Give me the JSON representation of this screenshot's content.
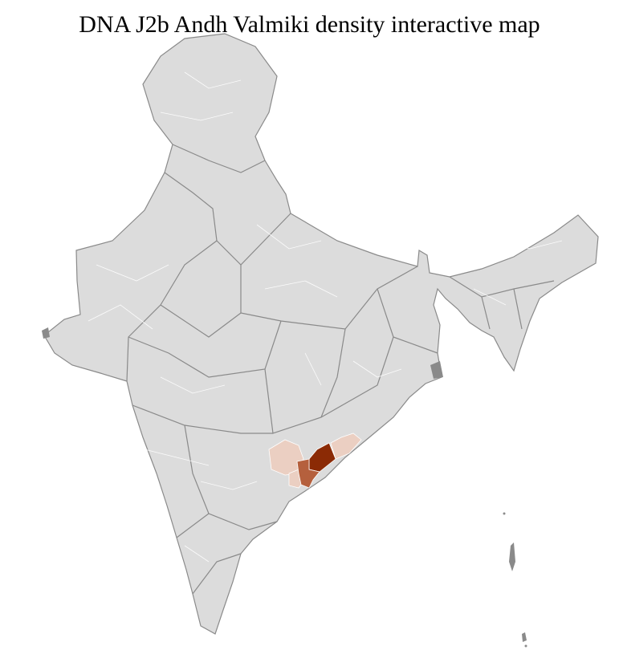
{
  "title": "DNA J2b Andh Valmiki density interactive map",
  "map": {
    "region": "India districts",
    "colors": {
      "base": "#dcdcdc",
      "state_border": "#8a8a8a",
      "district_border": "#ffffff",
      "density_high": "#8b2a05",
      "density_medium": "#b5603d",
      "density_low": "#ebcfc2"
    }
  }
}
